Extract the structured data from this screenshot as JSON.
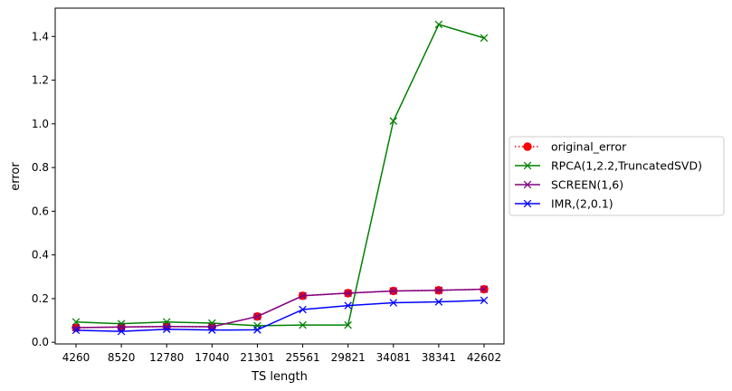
{
  "chart_data": {
    "type": "line",
    "title": "",
    "xlabel": "TS length",
    "ylabel": "error",
    "categories": [
      "4260",
      "8520",
      "12780",
      "17040",
      "21301",
      "25561",
      "29821",
      "34081",
      "38341",
      "42602"
    ],
    "ylim": [
      -0.0075,
      1.5296
    ],
    "yticks": [
      0.0,
      0.2,
      0.4,
      0.6,
      0.8,
      1.0,
      1.2,
      1.4
    ],
    "ytick_labels": [
      "0.0",
      "0.2",
      "0.4",
      "0.6",
      "0.8",
      "1.0",
      "1.2",
      "1.4"
    ],
    "grid": false,
    "legend_position": "outside-right",
    "series": [
      {
        "name": "original_error",
        "color": "#ff0000",
        "marker": "circle",
        "line_style": "dotted",
        "values": [
          0.067,
          0.07,
          0.072,
          0.071,
          0.118,
          0.213,
          0.225,
          0.235,
          0.238,
          0.243
        ]
      },
      {
        "name": "RPCA(1,2.2,TruncatedSVD)",
        "color": "#008000",
        "marker": "x",
        "line_style": "solid",
        "values": [
          0.093,
          0.085,
          0.093,
          0.088,
          0.076,
          0.079,
          0.079,
          1.013,
          1.455,
          1.393
        ]
      },
      {
        "name": "SCREEN(1,6)",
        "color": "#800080",
        "marker": "x",
        "line_style": "solid",
        "values": [
          0.067,
          0.07,
          0.072,
          0.071,
          0.118,
          0.213,
          0.225,
          0.235,
          0.238,
          0.243
        ]
      },
      {
        "name": "IMR,(2,0.1)",
        "color": "#0000ff",
        "marker": "x",
        "line_style": "solid",
        "values": [
          0.055,
          0.05,
          0.06,
          0.056,
          0.057,
          0.15,
          0.168,
          0.181,
          0.185,
          0.192
        ]
      }
    ]
  }
}
